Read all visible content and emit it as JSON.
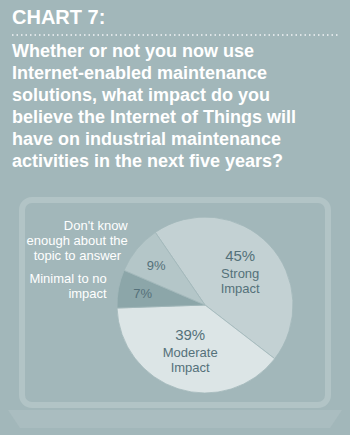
{
  "chart_data": {
    "type": "pie",
    "title": "CHART 7:",
    "subtitle": "Whether or not you now use Internet-enabled maintenance solutions, what impact do you believe the Internet of Things will have on industrial maintenance activities in the next five years?",
    "categories": [
      "Strong Impact",
      "Moderate Impact",
      "Minimal to no impact",
      "Don't know enough about the topic to answer"
    ],
    "values": [
      45,
      39,
      7,
      9
    ],
    "value_labels": [
      "45%",
      "39%",
      "7%",
      "9%"
    ],
    "colors": [
      "#c3d1d3",
      "#dce5e6",
      "#8ca6a9",
      "#b4c6c8"
    ],
    "data_labels": true
  }
}
